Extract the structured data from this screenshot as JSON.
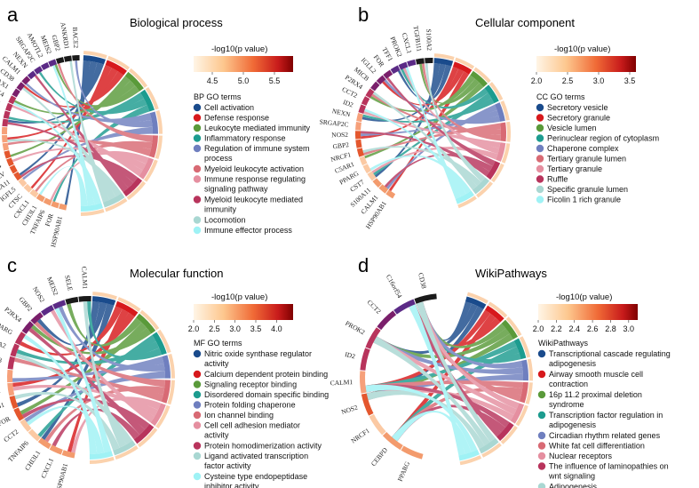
{
  "chart_data": [
    {
      "type": "chord",
      "panel": "a",
      "title": "Biological process",
      "colorbar": {
        "title": "-log10(p value)",
        "ticks": [
          "4.5",
          "5.0",
          "5.5"
        ],
        "range": [
          4.2,
          5.8
        ]
      },
      "legend_title": "BP GO terms",
      "terms": [
        {
          "label": "Cell activation",
          "color": "#1a4b8c"
        },
        {
          "label": "Defense response",
          "color": "#d7191c"
        },
        {
          "label": "Leukocyte mediated immunity",
          "color": "#5a9a3a"
        },
        {
          "label": "Inflammatory response",
          "color": "#1d9c8f"
        },
        {
          "label": "Regulation of immune system process",
          "color": "#6f7fbf"
        },
        {
          "label": "Myeloid leukocyte activation",
          "color": "#d86a74"
        },
        {
          "label": "Immune response regulating signaling pathway",
          "color": "#e58fa0"
        },
        {
          "label": "Myeloid leukocyte mediated immunity",
          "color": "#b8345c"
        },
        {
          "label": "Locomotion",
          "color": "#a9d7d2"
        },
        {
          "label": "Immune effector process",
          "color": "#9ff2f5"
        }
      ],
      "genes": [
        "HSP90AB1",
        "FOR",
        "TNFAIP6",
        "CHI3L1",
        "CXCL1",
        "CTSC",
        "IGFL5",
        "S100A11",
        "RGLV",
        "CD44",
        "CCT2",
        "MICB",
        "CST7",
        "PPARG",
        "SELE",
        "EPHA2",
        "PROK2",
        "P2RX4",
        "LAX1",
        "CD38",
        "CALM1",
        "NEXN",
        "SRGAP2C",
        "AMOTL2",
        "MEIS2",
        "GBP2",
        "ANKRD1",
        "BACE2"
      ]
    },
    {
      "type": "chord",
      "panel": "b",
      "title": "Cellular component",
      "colorbar": {
        "title": "-log10(p value)",
        "ticks": [
          "2.0",
          "2.5",
          "3.0",
          "3.5"
        ],
        "range": [
          2.0,
          3.6
        ]
      },
      "legend_title": "CC GO terms",
      "terms": [
        {
          "label": "Secretory vesicle",
          "color": "#1a4b8c"
        },
        {
          "label": "Secretory granule",
          "color": "#d7191c"
        },
        {
          "label": "Vesicle lumen",
          "color": "#5a9a3a"
        },
        {
          "label": "Perinuclear region of cytoplasm",
          "color": "#1d9c8f"
        },
        {
          "label": "Chaperone complex",
          "color": "#6f7fbf"
        },
        {
          "label": "Tertiary granule lumen",
          "color": "#d86a74"
        },
        {
          "label": "Tertiary granule",
          "color": "#e58fa0"
        },
        {
          "label": "Ruffle",
          "color": "#b8345c"
        },
        {
          "label": "Specific granule lumen",
          "color": "#a9d7d2"
        },
        {
          "label": "Ficolin 1 rich granule",
          "color": "#9ff2f5"
        }
      ],
      "genes": [
        "HSP90AB1",
        "CALM1",
        "S100A11",
        "CST7",
        "PPARG",
        "C5AR1",
        "NRCF1",
        "GBP2",
        "NOS2",
        "SRGAP2C",
        "NEXN",
        "ID2",
        "CCT2",
        "P2RX4",
        "MICB",
        "IGLL2",
        "FOR",
        "TFF1",
        "PROK2",
        "CXCL1",
        "TGFB1I1",
        "S100A2"
      ]
    },
    {
      "type": "chord",
      "panel": "c",
      "title": "Molecular function",
      "colorbar": {
        "title": "-log10(p value)",
        "ticks": [
          "2.0",
          "2.5",
          "3.0",
          "3.5",
          "4.0"
        ],
        "range": [
          2.0,
          4.4
        ]
      },
      "legend_title": "MF GO terms",
      "terms": [
        {
          "label": "Nitric oxide synthase regulator activity",
          "color": "#1a4b8c"
        },
        {
          "label": "Calcium dependent protein binding",
          "color": "#d7191c"
        },
        {
          "label": "Signaling receptor binding",
          "color": "#5a9a3a"
        },
        {
          "label": "Disordered domain specific binding",
          "color": "#1d9c8f"
        },
        {
          "label": "Protein folding chaperone",
          "color": "#6f7fbf"
        },
        {
          "label": "Ion channel binding",
          "color": "#d86a74"
        },
        {
          "label": "Cell cell adhesion mediator activity",
          "color": "#e58fa0"
        },
        {
          "label": "Protein homodimerization activity",
          "color": "#b8345c"
        },
        {
          "label": "Ligand activated transcription factor activity",
          "color": "#a9d7d2"
        },
        {
          "label": "Cysteine type endopeptidase inhibitor activity",
          "color": "#9ff2f5"
        }
      ],
      "genes": [
        "HSP90AB1",
        "CXCL1",
        "CHI3L1",
        "TNFAIP6",
        "CCT2",
        "FOR",
        "TCIRG1",
        "S100A11",
        "BACE2",
        "CD38",
        "EPHA2",
        "PPARG",
        "P2RX4",
        "GBP2",
        "NOS2",
        "MEIS2",
        "SELE",
        "CALM1"
      ]
    },
    {
      "type": "chord",
      "panel": "d",
      "title": "WikiPathways",
      "colorbar": {
        "title": "-log10(p value)",
        "ticks": [
          "2.0",
          "2.2",
          "2.4",
          "2.6",
          "2.8",
          "3.0"
        ],
        "range": [
          2.0,
          3.1
        ]
      },
      "legend_title": "WikiPathways",
      "terms": [
        {
          "label": "Transcriptional cascade regulating adipogenesis",
          "color": "#1a4b8c"
        },
        {
          "label": "Airway smooth muscle cell contraction",
          "color": "#d7191c"
        },
        {
          "label": "16p 11.2 proximal deletion syndrome",
          "color": "#5a9a3a"
        },
        {
          "label": "Transcription factor regulation in adipogenesis",
          "color": "#1d9c8f"
        },
        {
          "label": "Circadian rhythm related genes",
          "color": "#6f7fbf"
        },
        {
          "label": "White fat cell differentiation",
          "color": "#d86a74"
        },
        {
          "label": "Nuclear receptors",
          "color": "#e58fa0"
        },
        {
          "label": "The influence of laminopathies on wnt signaling",
          "color": "#b8345c"
        },
        {
          "label": "Adipogenesis",
          "color": "#a9d7d2"
        },
        {
          "label": "No-cgmp-pkg mediated neuroprotection",
          "color": "#9ff2f5"
        }
      ],
      "genes": [
        "PPARG",
        "CEBPD",
        "NRCF1",
        "NOS2",
        "CALM1",
        "ID2",
        "PROK2",
        "CCT2",
        "C16orf54",
        "CD38"
      ]
    }
  ]
}
